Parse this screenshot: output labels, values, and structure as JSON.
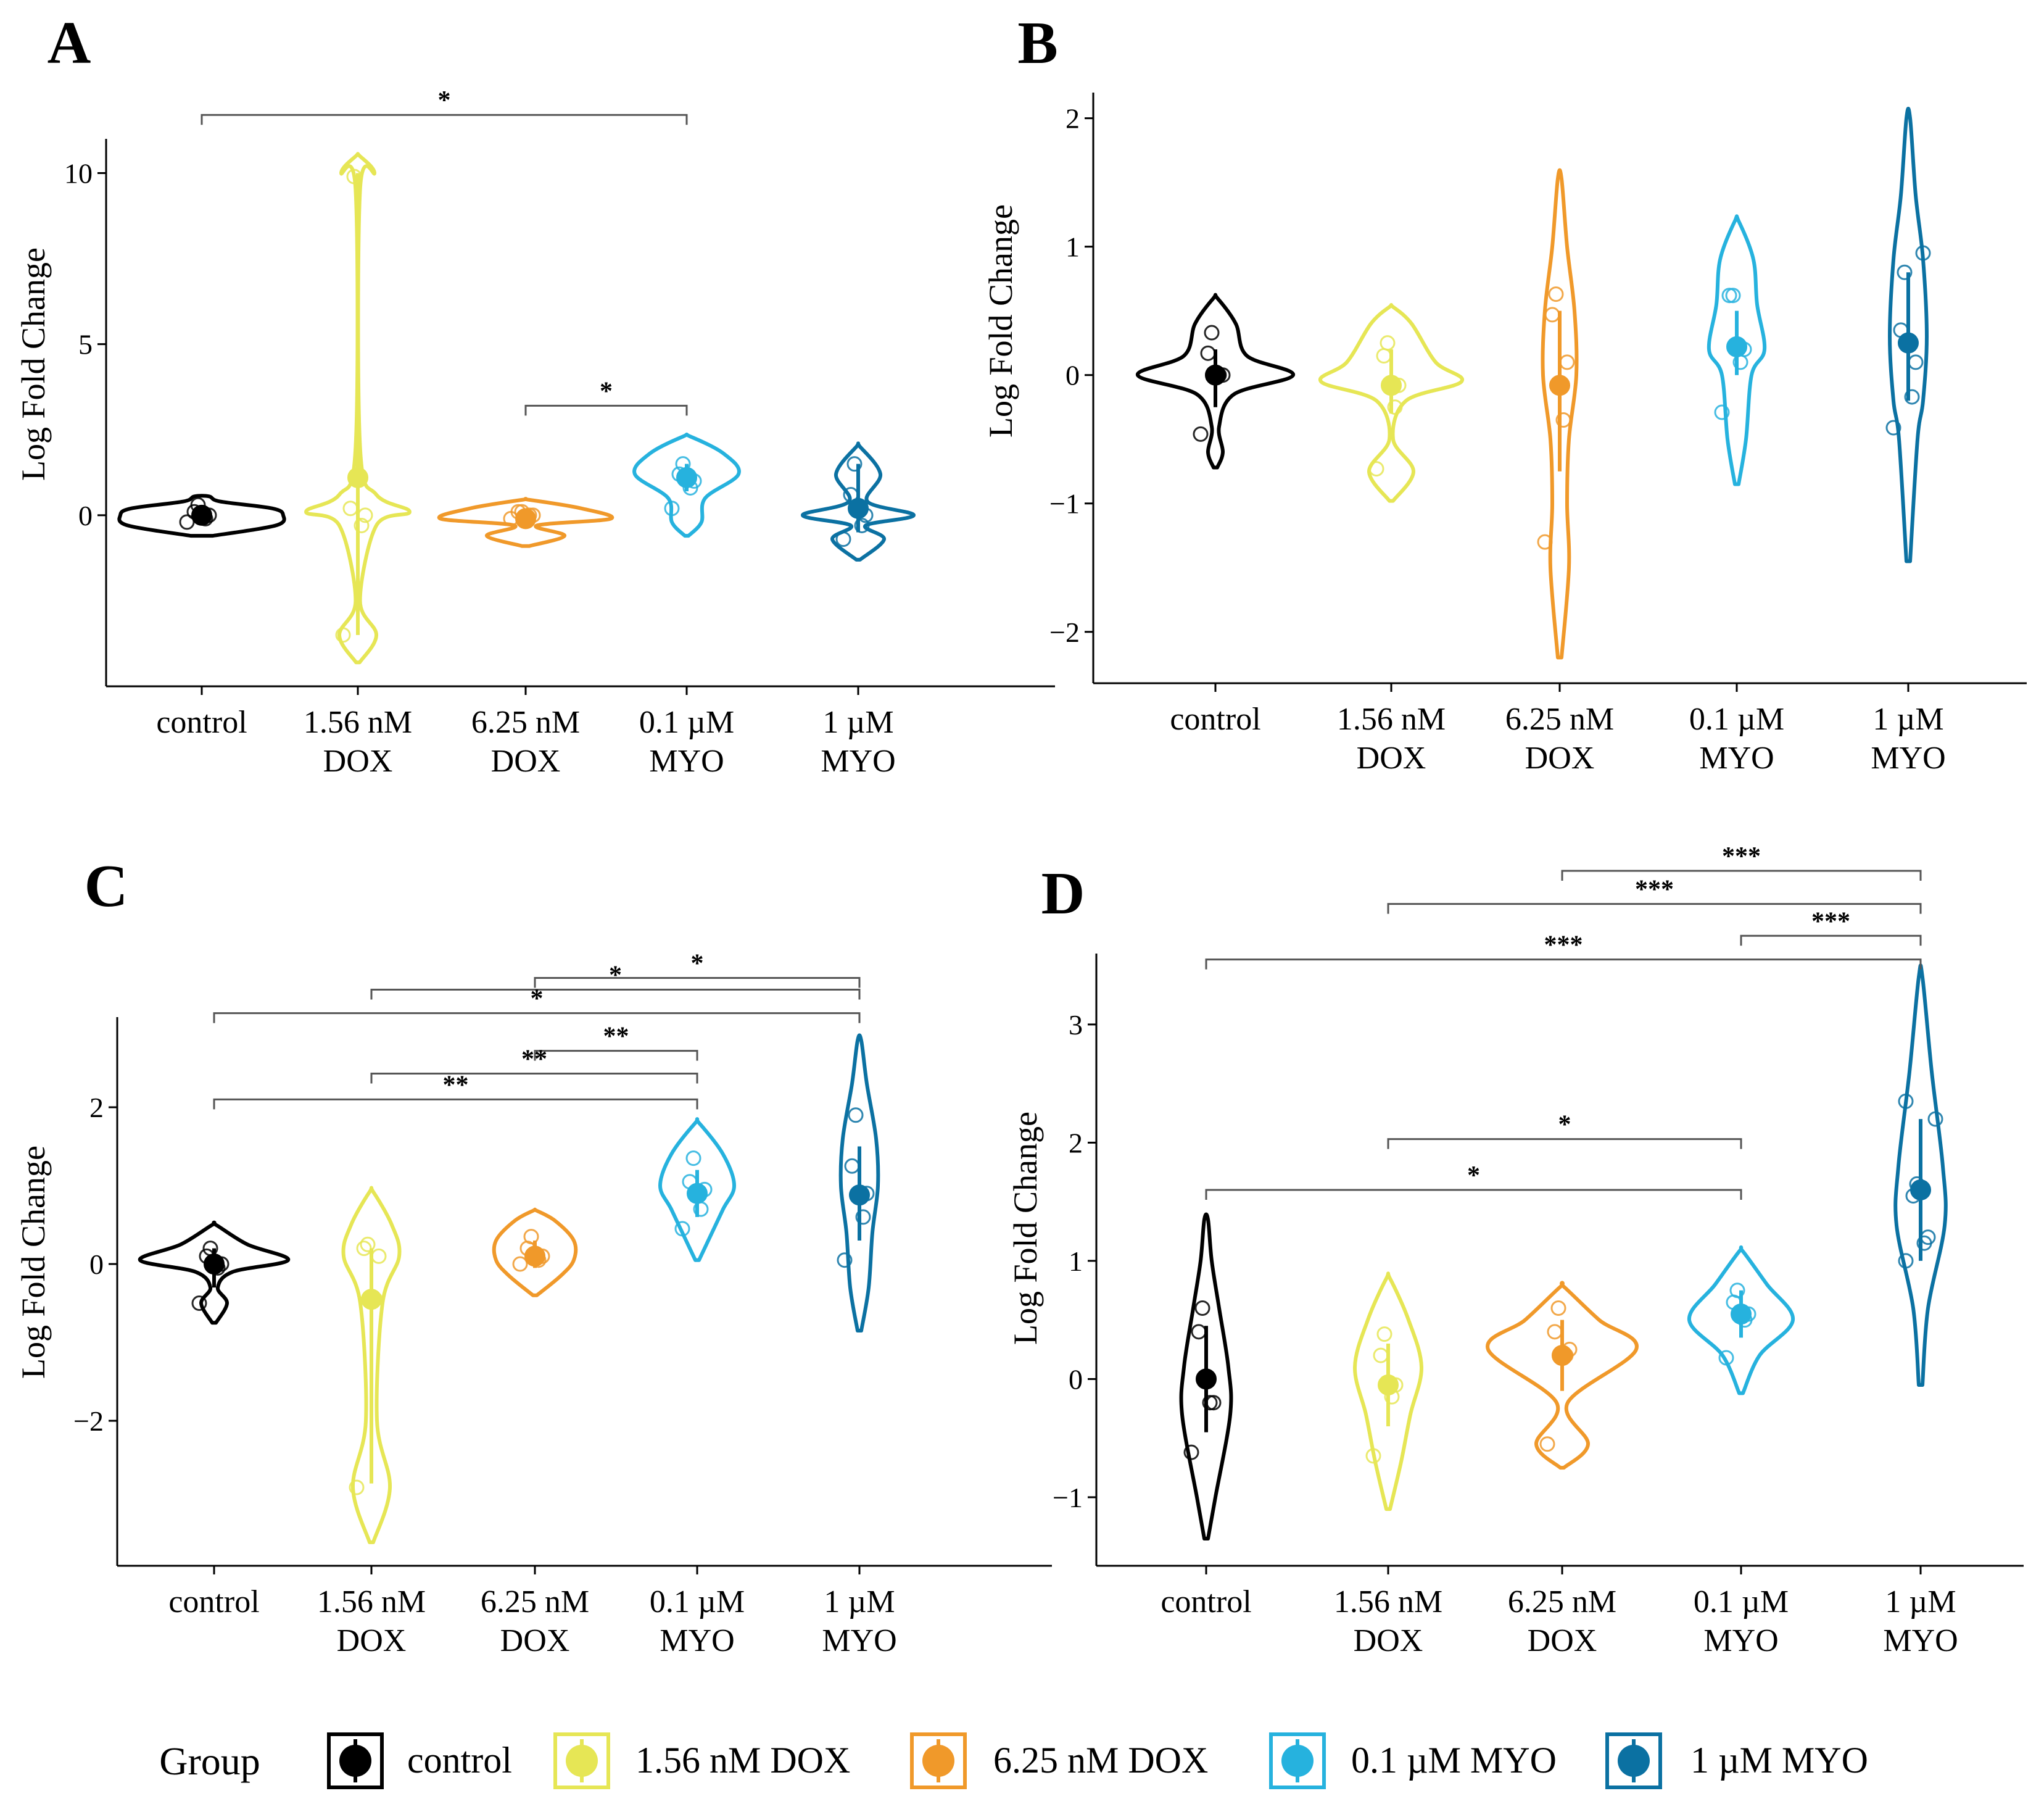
{
  "legend": {
    "title": "Group",
    "items": [
      {
        "label": "control",
        "color": "#000000"
      },
      {
        "label": "1.56 nM DOX",
        "color": "#e6e655"
      },
      {
        "label": "6.25 nM DOX",
        "color": "#f0992a"
      },
      {
        "label": "0.1 µM MYO",
        "color": "#26b2de"
      },
      {
        "label": "1 µM MYO",
        "color": "#0b71a2"
      }
    ]
  },
  "chart_data": [
    {
      "panel": "A",
      "type": "violin",
      "ylabel": "Log Fold Change",
      "ylim": [
        -5,
        11
      ],
      "yticks": [
        10,
        5,
        0
      ],
      "categories": [
        {
          "line1": "control",
          "line2": ""
        },
        {
          "line1": "1.56 nM",
          "line2": "DOX"
        },
        {
          "line1": "6.25 nM",
          "line2": "DOX"
        },
        {
          "line1": "0.1 µM",
          "line2": "MYO"
        },
        {
          "line1": "1 µM",
          "line2": "MYO"
        }
      ],
      "groups": [
        {
          "mean": 0.0,
          "ci": [
            -0.15,
            0.15
          ],
          "points": [
            -0.2,
            -0.1,
            0.0,
            0.1,
            0.3
          ],
          "violin": [
            [
              -0.6,
              0.3
            ],
            [
              -0.3,
              2
            ],
            [
              0,
              2.2
            ],
            [
              0.2,
              1.9
            ],
            [
              0.4,
              0.5
            ],
            [
              0.55,
              0.2
            ]
          ]
        },
        {
          "mean": 1.1,
          "ci": [
            -3.5,
            10
          ],
          "points": [
            -3.5,
            -0.3,
            0.0,
            0.2,
            9.9
          ],
          "violin": [
            [
              -4.3,
              0.05
            ],
            [
              -3.5,
              0.5
            ],
            [
              -2.5,
              0.06
            ],
            [
              -0.3,
              0.5
            ],
            [
              0.1,
              1.4
            ],
            [
              0.6,
              0.5
            ],
            [
              2,
              0.06
            ],
            [
              9.5,
              0.06
            ],
            [
              10,
              0.45
            ],
            [
              10.5,
              0.05
            ]
          ]
        },
        {
          "mean": -0.1,
          "ci": [
            -0.3,
            0.1
          ],
          "points": [
            -0.1,
            0.0,
            0.0,
            0.1,
            0.1
          ],
          "violin": [
            [
              -0.9,
              0.1
            ],
            [
              -0.6,
              1.05
            ],
            [
              -0.3,
              0.3
            ],
            [
              -0.1,
              2.3
            ],
            [
              0.2,
              1.5
            ],
            [
              0.45,
              0.1
            ]
          ]
        },
        {
          "mean": 1.1,
          "ci": [
            0.7,
            1.5
          ],
          "points": [
            0.2,
            0.8,
            1.0,
            1.2,
            1.5
          ],
          "violin": [
            [
              -0.6,
              0.05
            ],
            [
              -0.2,
              0.4
            ],
            [
              0.5,
              0.5
            ],
            [
              1.2,
              1.4
            ],
            [
              1.8,
              1.0
            ],
            [
              2.3,
              0.1
            ]
          ]
        },
        {
          "mean": 0.2,
          "ci": [
            -0.5,
            1.5
          ],
          "points": [
            -0.7,
            -0.3,
            0.0,
            0.6,
            1.5
          ],
          "violin": [
            [
              -1.3,
              0.05
            ],
            [
              -0.7,
              0.7
            ],
            [
              -0.3,
              0.2
            ],
            [
              0,
              1.5
            ],
            [
              0.4,
              0.25
            ],
            [
              1.2,
              0.6
            ],
            [
              2,
              0.05
            ]
          ]
        }
      ],
      "comparisons": [
        {
          "from": 0,
          "to": 3,
          "y": 11.7,
          "label": "*"
        },
        {
          "from": 2,
          "to": 3,
          "y": 3.2,
          "label": "*"
        }
      ]
    },
    {
      "panel": "B",
      "type": "violin",
      "ylabel": "Log Fold Change",
      "ylim": [
        -2.4,
        2.2
      ],
      "yticks": [
        2,
        1,
        0,
        -1,
        -2
      ],
      "categories": [
        {
          "line1": "control",
          "line2": ""
        },
        {
          "line1": "1.56 nM",
          "line2": "DOX"
        },
        {
          "line1": "6.25 nM",
          "line2": "DOX"
        },
        {
          "line1": "0.1 µM",
          "line2": "MYO"
        },
        {
          "line1": "1 µM",
          "line2": "MYO"
        }
      ],
      "groups": [
        {
          "mean": 0.0,
          "ci": [
            -0.25,
            0.2
          ],
          "points": [
            -0.46,
            0.0,
            0.0,
            0.17,
            0.33
          ],
          "violin": [
            [
              -0.72,
              0.05
            ],
            [
              -0.6,
              0.2
            ],
            [
              -0.4,
              0.1
            ],
            [
              -0.15,
              0.5
            ],
            [
              0,
              2.1
            ],
            [
              0.15,
              0.85
            ],
            [
              0.4,
              0.55
            ],
            [
              0.6,
              0.05
            ]
          ]
        },
        {
          "mean": -0.08,
          "ci": [
            -0.3,
            0.2
          ],
          "points": [
            -0.73,
            -0.25,
            -0.08,
            0.15,
            0.25
          ],
          "violin": [
            [
              -0.98,
              0.05
            ],
            [
              -0.75,
              0.6
            ],
            [
              -0.5,
              0.05
            ],
            [
              -0.2,
              0.4
            ],
            [
              -0.05,
              1.9
            ],
            [
              0.1,
              1.2
            ],
            [
              0.4,
              0.55
            ],
            [
              0.53,
              0.05
            ]
          ]
        },
        {
          "mean": -0.08,
          "ci": [
            -0.75,
            0.5
          ],
          "points": [
            -1.3,
            -0.35,
            0.1,
            0.47,
            0.63
          ],
          "violin": [
            [
              -2.2,
              0.05
            ],
            [
              -1.5,
              0.25
            ],
            [
              -1.0,
              0.2
            ],
            [
              -0.5,
              0.25
            ],
            [
              0,
              0.45
            ],
            [
              0.5,
              0.4
            ],
            [
              1.0,
              0.2
            ],
            [
              1.53,
              0.05
            ]
          ]
        },
        {
          "mean": 0.22,
          "ci": [
            0.0,
            0.5
          ],
          "points": [
            -0.29,
            0.1,
            0.2,
            0.62,
            0.62
          ],
          "violin": [
            [
              -0.85,
              0.05
            ],
            [
              -0.5,
              0.25
            ],
            [
              0,
              0.4
            ],
            [
              0.2,
              0.75
            ],
            [
              0.55,
              0.55
            ],
            [
              0.9,
              0.45
            ],
            [
              1.2,
              0.05
            ]
          ]
        },
        {
          "mean": 0.25,
          "ci": [
            -0.2,
            0.8
          ],
          "points": [
            -0.41,
            -0.17,
            0.1,
            0.35,
            0.8,
            0.95
          ],
          "violin": [
            [
              -1.45,
              0.05
            ],
            [
              -0.5,
              0.25
            ],
            [
              -0.2,
              0.4
            ],
            [
              0.3,
              0.5
            ],
            [
              0.9,
              0.4
            ],
            [
              1.4,
              0.2
            ],
            [
              2.0,
              0.05
            ]
          ]
        }
      ],
      "comparisons": []
    },
    {
      "panel": "C",
      "type": "violin",
      "ylabel": "Log Fold Change",
      "ylim": [
        -3.85,
        3.15
      ],
      "yticks": [
        2,
        0,
        -2
      ],
      "categories": [
        {
          "line1": "control",
          "line2": ""
        },
        {
          "line1": "1.56 nM",
          "line2": "DOX"
        },
        {
          "line1": "6.25 nM",
          "line2": "DOX"
        },
        {
          "line1": "0.1 µM",
          "line2": "MYO"
        },
        {
          "line1": "1 µM",
          "line2": "MYO"
        }
      ],
      "groups": [
        {
          "mean": 0.0,
          "ci": [
            -0.3,
            0.2
          ],
          "points": [
            -0.5,
            -0.05,
            0.0,
            0.1,
            0.2
          ],
          "violin": [
            [
              -0.75,
              0.05
            ],
            [
              -0.5,
              0.35
            ],
            [
              -0.3,
              0.1
            ],
            [
              -0.1,
              0.5
            ],
            [
              0.05,
              2.0
            ],
            [
              0.25,
              0.9
            ],
            [
              0.5,
              0.05
            ]
          ]
        },
        {
          "mean": -0.45,
          "ci": [
            -2.8,
            0.2
          ],
          "points": [
            -2.85,
            -0.45,
            0.1,
            0.2,
            0.25
          ],
          "violin": [
            [
              -3.55,
              0.05
            ],
            [
              -2.85,
              0.5
            ],
            [
              -2.0,
              0.15
            ],
            [
              -0.5,
              0.3
            ],
            [
              0.1,
              0.75
            ],
            [
              0.5,
              0.55
            ],
            [
              0.92,
              0.05
            ]
          ]
        },
        {
          "mean": 0.1,
          "ci": [
            -0.05,
            0.3
          ],
          "points": [
            0.0,
            0.05,
            0.1,
            0.2,
            0.35
          ],
          "violin": [
            [
              -0.4,
              0.05
            ],
            [
              -0.15,
              0.7
            ],
            [
              0.05,
              1.05
            ],
            [
              0.3,
              1.05
            ],
            [
              0.55,
              0.55
            ],
            [
              0.68,
              0.05
            ]
          ]
        },
        {
          "mean": 0.9,
          "ci": [
            0.6,
            1.2
          ],
          "points": [
            0.45,
            0.7,
            0.95,
            1.05,
            1.35
          ],
          "violin": [
            [
              0.05,
              0.05
            ],
            [
              0.3,
              0.3
            ],
            [
              0.7,
              0.7
            ],
            [
              1.0,
              1.0
            ],
            [
              1.4,
              0.7
            ],
            [
              1.8,
              0.05
            ]
          ]
        },
        {
          "mean": 0.88,
          "ci": [
            0.3,
            1.5
          ],
          "points": [
            0.05,
            0.6,
            0.9,
            1.25,
            1.9
          ],
          "violin": [
            [
              -0.85,
              0.05
            ],
            [
              -0.3,
              0.25
            ],
            [
              0.4,
              0.35
            ],
            [
              1.0,
              0.5
            ],
            [
              1.6,
              0.45
            ],
            [
              2.3,
              0.2
            ],
            [
              2.85,
              0.05
            ]
          ]
        }
      ],
      "comparisons": [
        {
          "from": 2,
          "to": 4,
          "y": 3.65,
          "label": "*"
        },
        {
          "from": 1,
          "to": 4,
          "y": 3.5,
          "label": "*"
        },
        {
          "from": 0,
          "to": 4,
          "y": 3.2,
          "label": "*"
        },
        {
          "from": 2,
          "to": 3,
          "y": 2.72,
          "label": "**"
        },
        {
          "from": 1,
          "to": 3,
          "y": 2.43,
          "label": "**"
        },
        {
          "from": 0,
          "to": 3,
          "y": 2.1,
          "label": "**"
        }
      ]
    },
    {
      "panel": "D",
      "type": "violin",
      "ylabel": "Log Fold Change",
      "ylim": [
        -1.58,
        3.6
      ],
      "yticks": [
        3,
        2,
        1,
        0,
        -1
      ],
      "categories": [
        {
          "line1": "control",
          "line2": ""
        },
        {
          "line1": "1.56 nM",
          "line2": "DOX"
        },
        {
          "line1": "6.25 nM",
          "line2": "DOX"
        },
        {
          "line1": "0.1 µM",
          "line2": "MYO"
        },
        {
          "line1": "1 µM",
          "line2": "MYO"
        }
      ],
      "groups": [
        {
          "mean": 0.0,
          "ci": [
            -0.45,
            0.45
          ],
          "points": [
            -0.62,
            -0.2,
            -0.2,
            0.4,
            0.6
          ],
          "violin": [
            [
              -1.35,
              0.05
            ],
            [
              -1.0,
              0.25
            ],
            [
              -0.3,
              0.65
            ],
            [
              0.1,
              0.6
            ],
            [
              0.6,
              0.35
            ],
            [
              1.0,
              0.15
            ],
            [
              1.35,
              0.05
            ]
          ]
        },
        {
          "mean": -0.05,
          "ci": [
            -0.4,
            0.3
          ],
          "points": [
            -0.65,
            -0.15,
            -0.05,
            0.2,
            0.38
          ],
          "violin": [
            [
              -1.1,
              0.05
            ],
            [
              -0.7,
              0.35
            ],
            [
              -0.3,
              0.6
            ],
            [
              0.1,
              0.9
            ],
            [
              0.5,
              0.55
            ],
            [
              0.85,
              0.05
            ]
          ]
        },
        {
          "mean": 0.2,
          "ci": [
            -0.1,
            0.5
          ],
          "points": [
            -0.55,
            0.2,
            0.25,
            0.4,
            0.6
          ],
          "violin": [
            [
              -0.75,
              0.05
            ],
            [
              -0.55,
              0.7
            ],
            [
              -0.2,
              0.15
            ],
            [
              0.25,
              2.0
            ],
            [
              0.5,
              1.0
            ],
            [
              0.78,
              0.05
            ]
          ]
        },
        {
          "mean": 0.55,
          "ci": [
            0.35,
            0.75
          ],
          "points": [
            0.18,
            0.5,
            0.55,
            0.65,
            0.75
          ],
          "violin": [
            [
              -0.12,
              0.05
            ],
            [
              0.2,
              0.5
            ],
            [
              0.5,
              1.4
            ],
            [
              0.8,
              0.7
            ],
            [
              1.08,
              0.05
            ]
          ]
        },
        {
          "mean": 1.6,
          "ci": [
            1.0,
            2.2
          ],
          "points": [
            1.0,
            1.15,
            1.2,
            1.55,
            1.65,
            2.2,
            2.35
          ],
          "violin": [
            [
              -0.05,
              0.05
            ],
            [
              0.6,
              0.2
            ],
            [
              1.3,
              0.65
            ],
            [
              1.8,
              0.6
            ],
            [
              2.6,
              0.3
            ],
            [
              3.4,
              0.05
            ]
          ]
        }
      ],
      "comparisons": [
        {
          "from": 2,
          "to": 4,
          "y": 4.3,
          "label": "***"
        },
        {
          "from": 1,
          "to": 4,
          "y": 4.02,
          "label": "***"
        },
        {
          "from": 3,
          "to": 4,
          "y": 3.75,
          "label": "***"
        },
        {
          "from": 0,
          "to": 4,
          "y": 3.55,
          "label": "***"
        },
        {
          "from": 1,
          "to": 3,
          "y": 2.03,
          "label": "*"
        },
        {
          "from": 0,
          "to": 3,
          "y": 1.6,
          "label": "*"
        }
      ]
    }
  ]
}
